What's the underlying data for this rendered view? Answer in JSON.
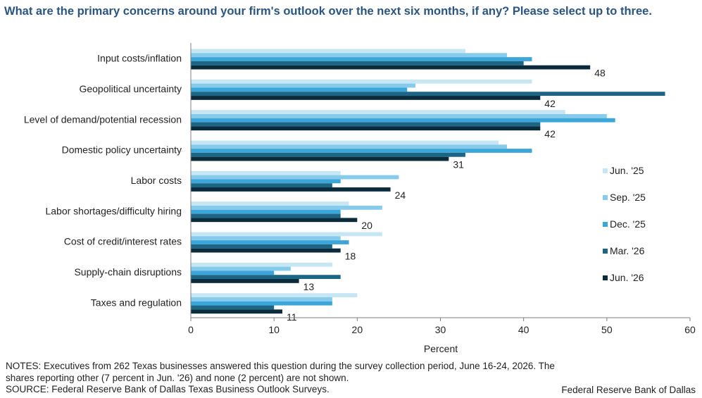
{
  "header": {
    "title": "What are the primary concerns around your firm's outlook over the next six months, if any? Please select up to three."
  },
  "chart_data": {
    "type": "bar",
    "orientation": "horizontal",
    "title": "What are the primary concerns around your firm's outlook over the next six months, if any? Please select up to three.",
    "categories": [
      "Input costs/inflation",
      "Geopolitical uncertainty",
      "Level of demand/potential recession",
      "Domestic policy uncertainty",
      "Labor costs",
      "Labor shortages/difficulty hiring",
      "Cost of credit/interest rates",
      "Supply-chain disruptions",
      "Taxes and regulation"
    ],
    "series": [
      {
        "name": "Jun. '25",
        "color": "#c6e6f4",
        "values": [
          33,
          41,
          45,
          37,
          18,
          19,
          23,
          17,
          20
        ]
      },
      {
        "name": "Sep. '25",
        "color": "#86cbeb",
        "values": [
          38,
          27,
          50,
          38,
          25,
          23,
          18,
          12,
          17
        ]
      },
      {
        "name": "Dec. '25",
        "color": "#3ca6d8",
        "values": [
          41,
          26,
          51,
          41,
          18,
          18,
          19,
          10,
          17
        ]
      },
      {
        "name": "Mar. '26",
        "color": "#1d6585",
        "values": [
          40,
          57,
          42,
          33,
          17,
          18,
          17,
          18,
          10
        ]
      },
      {
        "name": "Jun. '26",
        "color": "#0a2b3c",
        "values": [
          48,
          42,
          42,
          31,
          24,
          20,
          18,
          13,
          11
        ]
      }
    ],
    "data_labels": [
      "48",
      "42",
      "42",
      "31",
      "24",
      "20",
      "18",
      "13",
      "11"
    ],
    "xlabel": "Percent",
    "ylabel": "",
    "xlim": [
      0,
      60
    ],
    "xticks": [
      "0",
      "10",
      "20",
      "30",
      "40",
      "50",
      "60"
    ],
    "grid": false,
    "legend_position": "right"
  },
  "footer": {
    "notes_line1": "NOTES: Executives from 262 Texas businesses answered this question during the survey collection period, June 16-24, 2026. The",
    "notes_line2": "shares reporting other (7 percent in Jun. '26) and none (2 percent) are not shown.",
    "source": "SOURCE: Federal Reserve Bank of Dallas Texas Business Outlook Surveys.",
    "credit": "Federal Reserve Bank of Dallas"
  }
}
